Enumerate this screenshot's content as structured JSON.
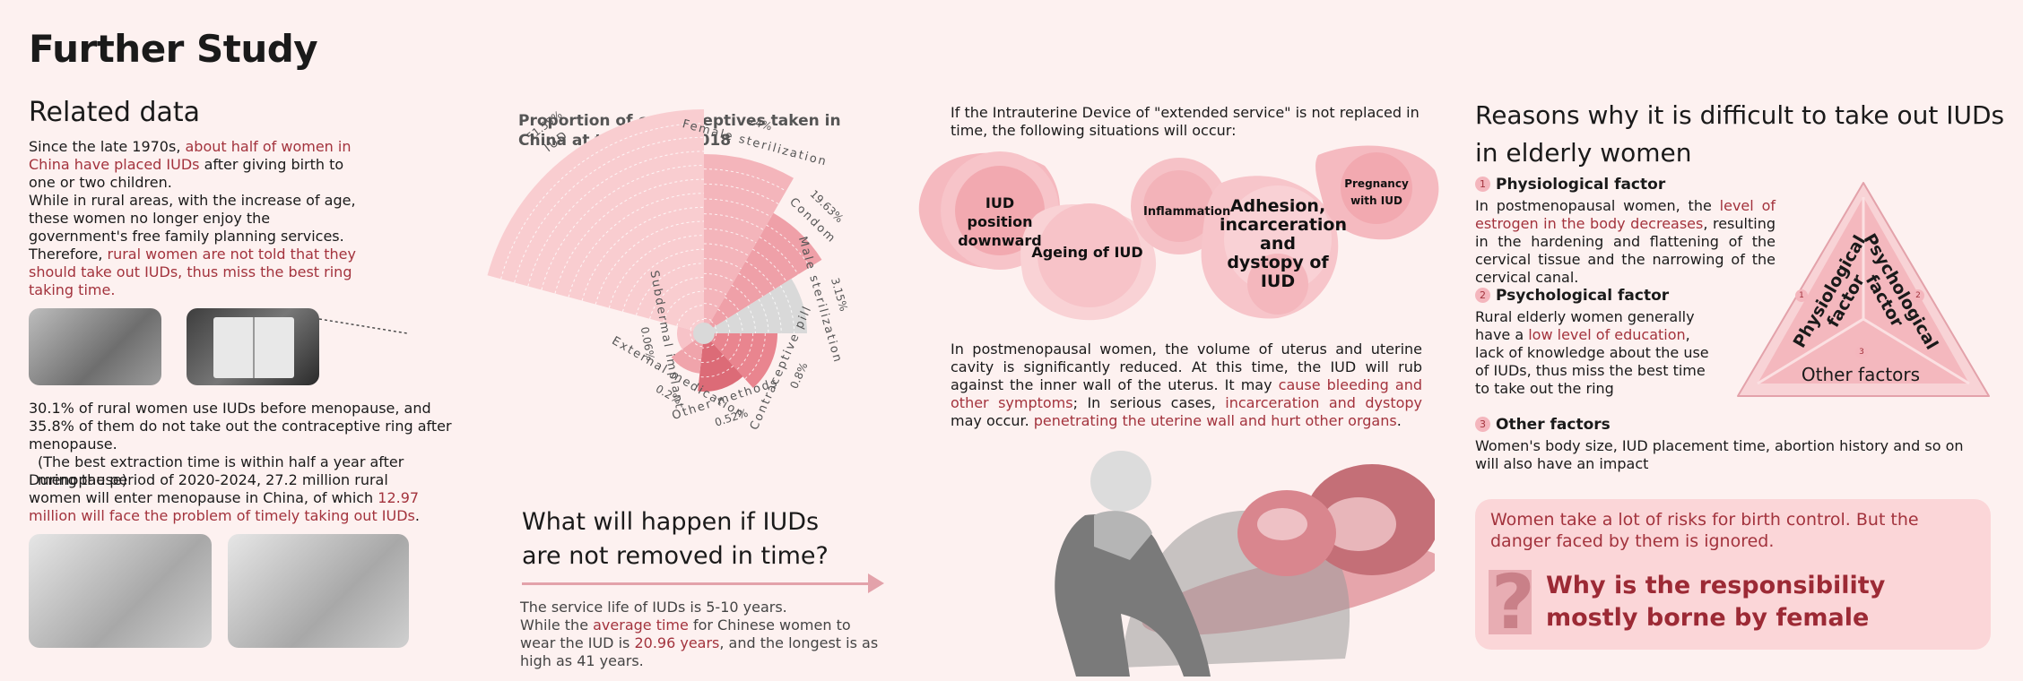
{
  "page_title": "Further Study",
  "related": {
    "heading": "Related data",
    "p1_a": "Since the late 1970s, ",
    "p1_hl": "about half of women in China have placed IUDs",
    "p1_b": " after giving birth to one or two children.",
    "p2": "While in rural areas, with the increase of age, these women no longer enjoy the government's free family planning services.",
    "p3_a": "Therefore, ",
    "p3_hl": " rural women are not told that they should take out IUDs, thus miss the best ring taking time.",
    "p4": "30.1% of rural women use IUDs before menopause, and 35.8% of them do not take out the contraceptive ring after menopause.",
    "p4_note": "(The best extraction time is within half a year after menopause)",
    "p5_a": "During the period of 2020-2024, 27.2 million rural women will enter menopause in China, of which ",
    "p5_hl": "12.97 million will face the problem of timely taking out IUDs",
    "p5_b": "."
  },
  "chart_data": {
    "type": "polar-area",
    "title": "Proportion of contraceptives taken in China at the end of 2018",
    "categories": [
      "IUD",
      "Female sterilization",
      "Condom",
      "Male sterilization",
      "Contraceptive pill",
      "Other methods",
      "External medication",
      "Subdermal implant"
    ],
    "values": [
      51.55,
      24,
      19.63,
      3.15,
      0.8,
      0.52,
      0.2,
      0.06
    ],
    "labels": [
      "51.55%",
      "24%",
      "19.63%",
      "3.15%",
      "0.8%",
      "0.52%",
      "0.2%",
      "0.06%"
    ],
    "colors": [
      "#f9cdd0",
      "#f4b5bb",
      "#efa0a8",
      "#d9d9d9",
      "#e9858f",
      "#dc6b77",
      "#f0a4ab",
      "#f7c3c8"
    ]
  },
  "happen": {
    "heading_line1": "What will happen if IUDs",
    "heading_line2": "are not removed in time?",
    "p1": "The service life of IUDs is 5-10 years.",
    "p2_a": "While the ",
    "p2_hl1": "average time",
    "p2_b": " for Chinese women to wear the IUD is ",
    "p2_hl2": "20.96 years",
    "p2_c": ", and the longest is as high as 41 years."
  },
  "situations": {
    "intro": "If the Intrauterine Device of \"extended service\" is not replaced in time, the following situations will occur:",
    "blobs": [
      "IUD position downward",
      "Ageing of IUD",
      "Inflammation",
      "Adhesion, incarceration and dystopy of IUD",
      "Pregnancy with IUD"
    ],
    "p_a": "In postmenopausal women, the volume of uterus and uterine cavity is significantly reduced. At this time, the IUD will rub against the inner wall of the uterus. It may ",
    "p_hl1": "cause bleeding and other symptoms",
    "p_b": "; In serious cases, ",
    "p_hl2": "incarceration and dystopy",
    "p_c": " may occur. ",
    "p_hl3": "penetrating the uterine wall and hurt other organs",
    "p_d": "."
  },
  "reasons": {
    "heading_line1": "Reasons why it is difficult to take out IUDs",
    "heading_line2": "in elderly women",
    "f1_num": "1",
    "f1_title": "Physiological factor",
    "f1_a": "In postmenopausal women, the ",
    "f1_hl": "level of estrogen in the body decreases",
    "f1_b": ", resulting in the hardening and flattening of the cervical tissue and the narrowing of the cervical canal.",
    "f2_num": "2",
    "f2_title": "Psychological factor",
    "f2_a": "Rural elderly women generally have a ",
    "f2_hl": "low level of education",
    "f2_b": ", lack of knowledge about the use of IUDs, thus miss the best time to take out the ring",
    "f3_num": "3",
    "f3_title": "Other factors",
    "f3_text": "Women's body size, IUD placement time, abortion history and so on will also have an impact",
    "triangle_left": "Physiological factor",
    "triangle_right": "Psychological factor",
    "triangle_bottom": "Other factors",
    "tri_n1": "1",
    "tri_n2": "2",
    "tri_n3": "3"
  },
  "banner": {
    "text": "Women take a lot of risks for birth control. But the danger faced by them is ignored.",
    "question_mark": "?",
    "headline": "Why is the responsibility mostly borne by female"
  }
}
